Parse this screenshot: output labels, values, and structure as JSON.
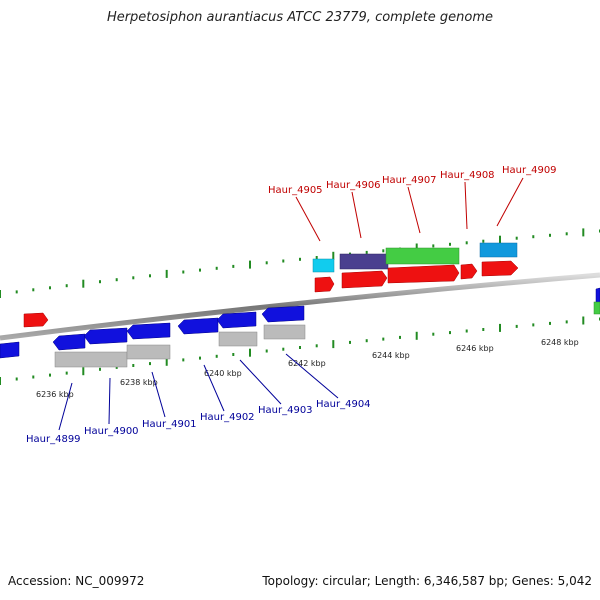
{
  "title": "Herpetosiphon aurantiacus ATCC 23779, complete genome",
  "footer": {
    "accession": "Accession: NC_009972",
    "summary": "Topology: circular; Length: 6,346,587 bp; Genes: 5,042"
  },
  "scale_labels": [
    "6236 kbp",
    "6238 kbp",
    "6240 kbp",
    "6242 kbp",
    "6244 kbp",
    "6246 kbp",
    "6248 kbp"
  ],
  "forward_genes": [
    "Haur_4905",
    "Haur_4906",
    "Haur_4907",
    "Haur_4908",
    "Haur_4909"
  ],
  "reverse_genes": [
    "Haur_4899",
    "Haur_4900",
    "Haur_4901",
    "Haur_4902",
    "Haur_4903",
    "Haur_4904"
  ],
  "colors": {
    "forward_label": "#c00000",
    "reverse_label": "#000099",
    "gene_red": "#ee1111",
    "gene_blue": "#1111dd",
    "gene_gray": "#bbbbbb",
    "gene_green": "#44cc44",
    "gene_purple": "#4a3f8f",
    "gene_cyan": "#11ccee",
    "gene_sky": "#1199dd",
    "tick_green": "#228b22",
    "backbone": "#888888"
  }
}
